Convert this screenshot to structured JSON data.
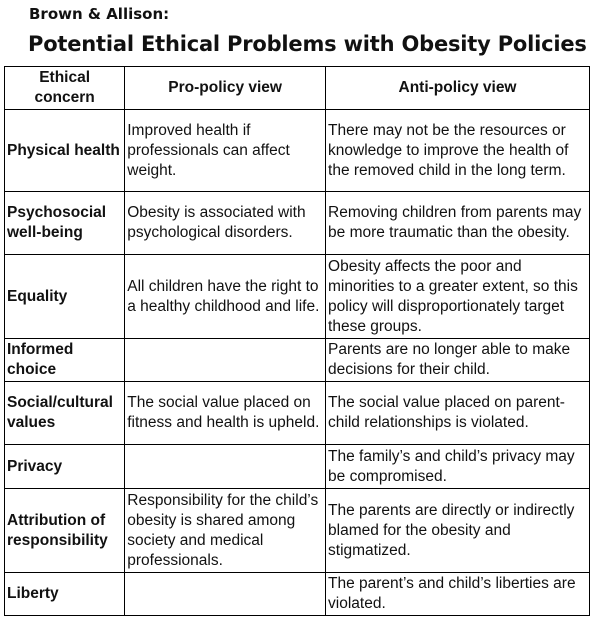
{
  "header": {
    "author": "Brown & Allison:",
    "title": "Potential Ethical Problems with Obesity Policies"
  },
  "table": {
    "columns": [
      "Ethical concern",
      "Pro-policy view",
      "Anti-policy view"
    ],
    "rows": [
      {
        "concern": "Physical health",
        "pro": "Improved health if professionals can affect weight.",
        "anti": "There may not be the resources or knowledge to improve the health of the removed child in the long term."
      },
      {
        "concern": "Psychosocial well-being",
        "pro": "Obesity is associated with psychological disorders.",
        "anti": "Removing children from parents may be more traumatic than the obesity."
      },
      {
        "concern": "Equality",
        "pro": "All children have the right to a healthy childhood and life.",
        "anti": "Obesity affects the poor and minorities to a greater extent, so this policy will disproportionately target these groups."
      },
      {
        "concern": "Informed choice",
        "pro": "",
        "anti": "Parents are no longer able to make decisions for their child."
      },
      {
        "concern": "Social/cultural values",
        "pro": "The social value placed on fitness and health is upheld.",
        "anti": "The social value placed on parent-child relationships is violated."
      },
      {
        "concern": "Privacy",
        "pro": "",
        "anti": "The family’s and child’s privacy may be compromised."
      },
      {
        "concern": "Attribution of responsibility",
        "pro": "Responsibility for the child’s obesity is shared among society and medical professionals.",
        "anti": "The parents are directly or indirectly blamed for the obesity and stigmatized."
      },
      {
        "concern": "Liberty",
        "pro": "",
        "anti": "The parent’s and child’s liberties are violated."
      }
    ]
  }
}
